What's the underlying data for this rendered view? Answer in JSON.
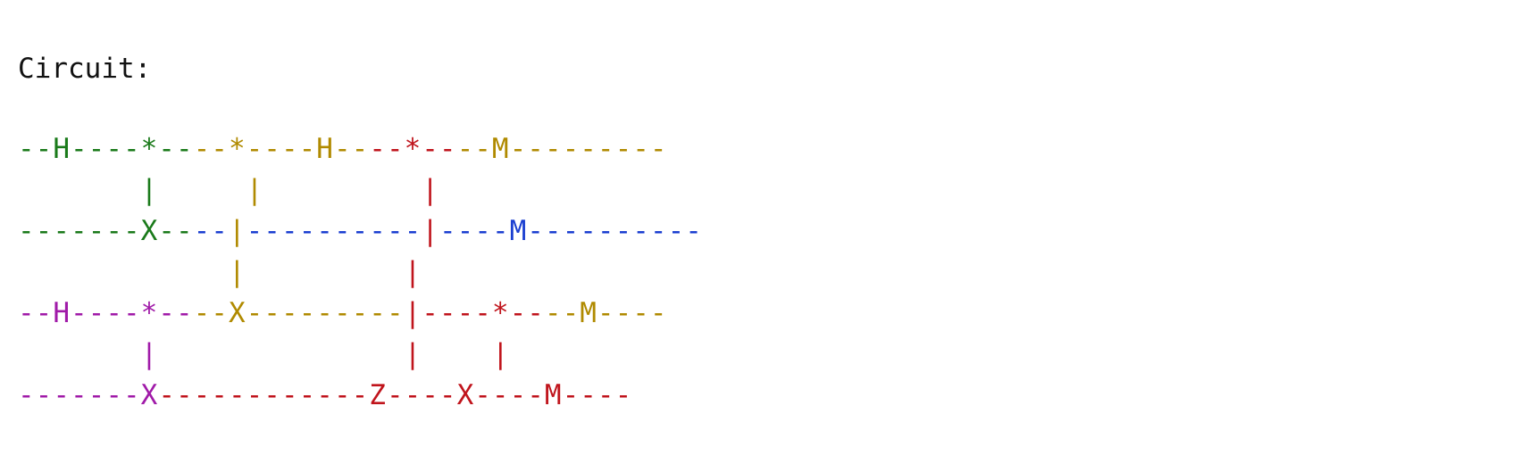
{
  "title": "Circuit:",
  "colors": {
    "green": "#1a7a1a",
    "gold": "#b08a00",
    "red": "#c0141c",
    "blue": "#1b3fd1",
    "magenta": "#a01aa8"
  },
  "rows": [
    [
      {
        "text": "--H----*--",
        "color": "green"
      },
      {
        "text": "--*----H--",
        "color": "gold"
      },
      {
        "text": "--*--",
        "color": "red"
      },
      {
        "text": "--M---------",
        "color": "gold"
      }
    ],
    [
      {
        "text": "       |   ",
        "color": "green"
      },
      {
        "text": "  |       ",
        "color": "gold"
      },
      {
        "text": "  |",
        "color": "red"
      }
    ],
    [
      {
        "text": "-------X--",
        "color": "green"
      },
      {
        "text": "--",
        "color": "blue"
      },
      {
        "text": "|",
        "color": "gold"
      },
      {
        "text": "----------",
        "color": "blue"
      },
      {
        "text": "|",
        "color": "red"
      },
      {
        "text": "----M----------",
        "color": "blue"
      }
    ],
    [
      {
        "text": "            ",
        "color": "green"
      },
      {
        "text": "|       ",
        "color": "gold"
      },
      {
        "text": "  |",
        "color": "red"
      }
    ],
    [
      {
        "text": "--H----*--",
        "color": "magenta"
      },
      {
        "text": "--X---------",
        "color": "gold"
      },
      {
        "text": "|----*--",
        "color": "red"
      },
      {
        "text": "--M----",
        "color": "gold"
      }
    ],
    [
      {
        "text": "       |   ",
        "color": "magenta"
      },
      {
        "text": "           ",
        "color": "gold"
      },
      {
        "text": "|    |",
        "color": "red"
      }
    ],
    [
      {
        "text": "-------X",
        "color": "magenta"
      },
      {
        "text": "------------Z----X----M----",
        "color": "red"
      }
    ]
  ]
}
